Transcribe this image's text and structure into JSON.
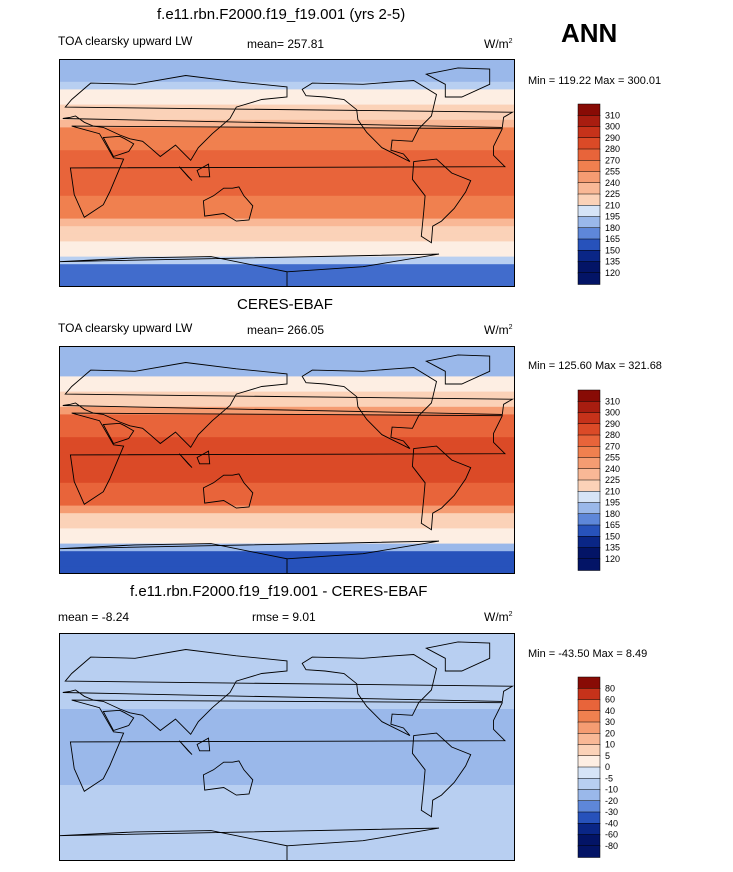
{
  "header": {
    "title": "f.e11.rbn.F2000.f19_f19.001 (yrs 2-5)",
    "season": "ANN"
  },
  "colors": {
    "warm": [
      "#fdeee3",
      "#fbd2b8",
      "#f9b896",
      "#f59c72",
      "#f0804f",
      "#e8643a",
      "#db4a27",
      "#c6321a",
      "#a81d10",
      "#880b05"
    ],
    "cool": [
      "#d6e4f7",
      "#b8cff1",
      "#9ab8ea",
      "#7ca0e2",
      "#5e87d9",
      "#416ccc",
      "#2752bb",
      "#163aa2",
      "#0a2686",
      "#031466"
    ],
    "land_outline": "#000000"
  },
  "chart_data": [
    {
      "type": "heatmap",
      "name": "model",
      "variable": "TOA clearsky upward LW",
      "mean_label": "mean= 257.81",
      "units_label": "W/m",
      "units_exp": "2",
      "minmax_label": "Min = 119.22 Max = 300.01",
      "levels": [
        "310",
        "300",
        "290",
        "280",
        "270",
        "255",
        "240",
        "225",
        "210",
        "195",
        "180",
        "165",
        "150",
        "135",
        "120"
      ],
      "min": 119.22,
      "max": 300.01,
      "mean": 257.81
    },
    {
      "type": "heatmap",
      "name": "obs",
      "title": "CERES-EBAF",
      "variable": "TOA clearsky upward LW",
      "mean_label": "mean= 266.05",
      "units_label": "W/m",
      "units_exp": "2",
      "minmax_label": "Min = 125.60 Max = 321.68",
      "levels": [
        "310",
        "300",
        "290",
        "280",
        "270",
        "255",
        "240",
        "225",
        "210",
        "195",
        "180",
        "165",
        "150",
        "135",
        "120"
      ],
      "min": 125.6,
      "max": 321.68,
      "mean": 266.05
    },
    {
      "type": "heatmap",
      "name": "difference",
      "title": "f.e11.rbn.F2000.f19_f19.001 - CERES-EBAF",
      "mean_label": "mean =  -8.24",
      "rmse_label": "rmse =   9.01",
      "units_label": "W/m",
      "units_exp": "2",
      "minmax_label": "Min = -43.50 Max =   8.49",
      "levels": [
        "80",
        "60",
        "40",
        "30",
        "20",
        "10",
        "5",
        "0",
        "-5",
        "-10",
        "-20",
        "-30",
        "-40",
        "-60",
        "-80"
      ],
      "min": -43.5,
      "max": 8.49,
      "mean": -8.24,
      "rmse": 9.01
    }
  ]
}
